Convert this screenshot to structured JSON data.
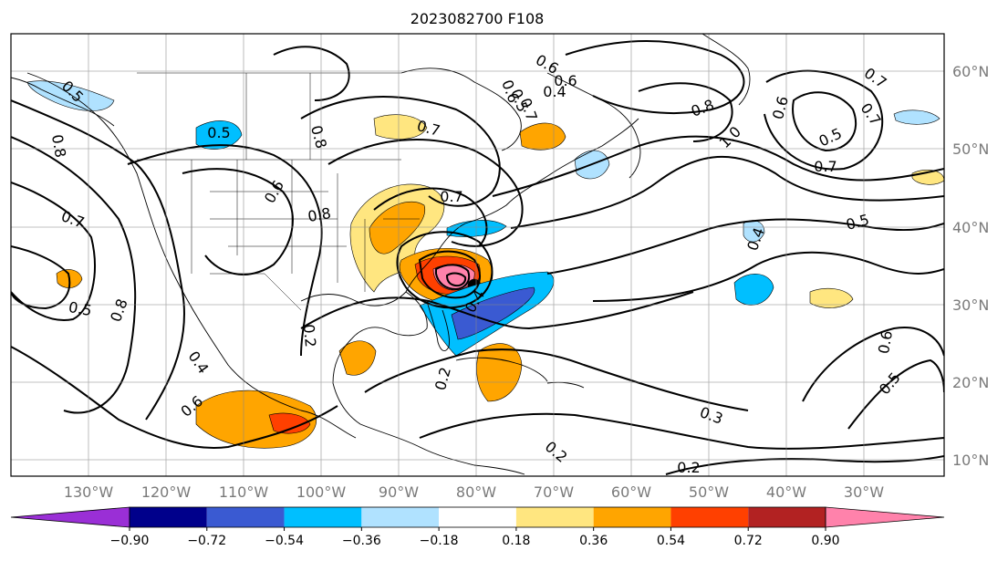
{
  "title": "2023082700 F108",
  "lon_ticks": [
    "130°W",
    "120°W",
    "110°W",
    "100°W",
    "90°W",
    "80°W",
    "70°W",
    "60°W",
    "50°W",
    "40°W",
    "30°W"
  ],
  "lat_ticks": [
    "60°N",
    "50°N",
    "40°N",
    "30°N",
    "20°N",
    "10°N"
  ],
  "colorbar": {
    "levels": [
      "−0.90",
      "−0.72",
      "−0.54",
      "−0.36",
      "−0.18",
      "0.18",
      "0.36",
      "0.54",
      "0.72",
      "0.90"
    ],
    "colors": [
      "#9a2fd6",
      "#00008b",
      "#3a5ad2",
      "#00bfff",
      "#b0e2ff",
      "#ffffff",
      "#ffe680",
      "#ffa500",
      "#ff4000",
      "#b22222",
      "#ff82ab"
    ]
  },
  "contour_labels": [
    "0.5",
    "0.6",
    "0.4",
    "0.7",
    "0.6",
    "0.7",
    "0.8",
    "1.0",
    "0.6",
    "0.7",
    "0.5",
    "0.8",
    "0.7",
    "0.5",
    "0.8",
    "0.7",
    "0.4",
    "0.5",
    "0.8",
    "0.5",
    "0.6",
    "0.2",
    "0.4",
    "0.6",
    "0.7",
    "0.6",
    "0.8",
    "0.5",
    "0.4",
    "0.2",
    "0.3",
    "0.2",
    "0.6",
    "0.5",
    "0.7",
    "0.2"
  ]
}
